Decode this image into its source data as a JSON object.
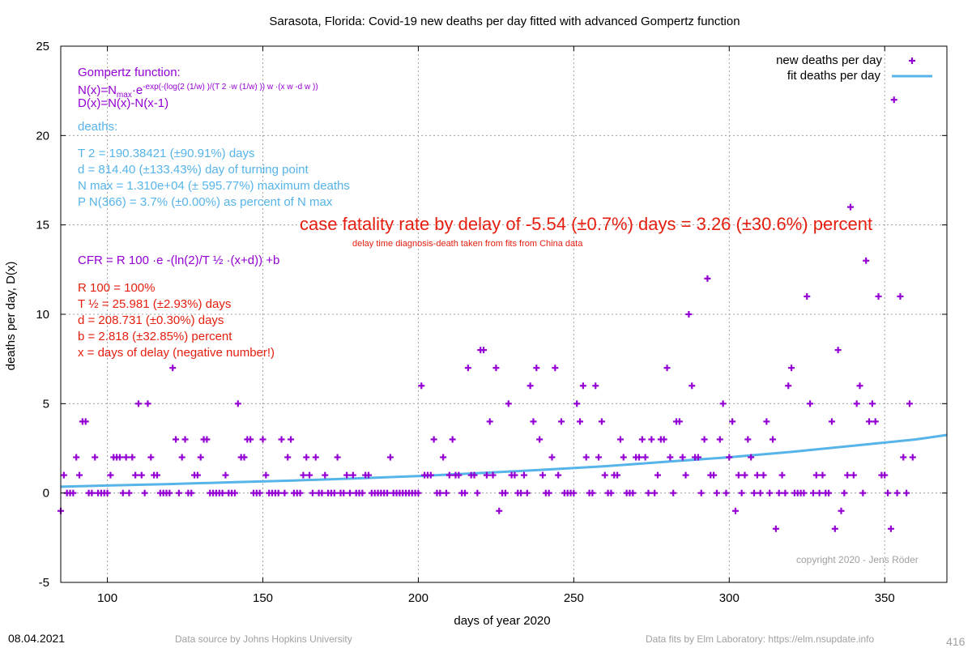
{
  "chart_data": {
    "type": "scatter",
    "title": "Sarasota,  Florida: Covid-19 new deaths per day fitted with advanced Gompertz function",
    "xlabel": "days of year 2020",
    "ylabel": "deaths per day, D(x)",
    "xlim": [
      85,
      370
    ],
    "ylim": [
      -5,
      25
    ],
    "xticks": [
      100,
      150,
      200,
      250,
      300,
      350
    ],
    "yticks": [
      -5,
      0,
      5,
      10,
      15,
      20,
      25
    ],
    "grid": true,
    "legend_position": "top-right",
    "legend": [
      "new deaths per day",
      "fit deaths per day"
    ],
    "series": [
      {
        "name": "new deaths per day",
        "kind": "points",
        "color": "#9400d3",
        "points": [
          [
            85,
            -1
          ],
          [
            86,
            1
          ],
          [
            87,
            0
          ],
          [
            88,
            0
          ],
          [
            89,
            0
          ],
          [
            90,
            2
          ],
          [
            91,
            1
          ],
          [
            92,
            4
          ],
          [
            93,
            4
          ],
          [
            94,
            0
          ],
          [
            95,
            0
          ],
          [
            96,
            2
          ],
          [
            97,
            0
          ],
          [
            98,
            0
          ],
          [
            99,
            0
          ],
          [
            100,
            0
          ],
          [
            101,
            1
          ],
          [
            102,
            2
          ],
          [
            103,
            2
          ],
          [
            104,
            2
          ],
          [
            105,
            0
          ],
          [
            106,
            2
          ],
          [
            107,
            0
          ],
          [
            108,
            2
          ],
          [
            109,
            1
          ],
          [
            110,
            5
          ],
          [
            111,
            1
          ],
          [
            112,
            0
          ],
          [
            113,
            5
          ],
          [
            114,
            2
          ],
          [
            115,
            1
          ],
          [
            116,
            1
          ],
          [
            117,
            0
          ],
          [
            118,
            0
          ],
          [
            119,
            0
          ],
          [
            120,
            0
          ],
          [
            121,
            7
          ],
          [
            122,
            3
          ],
          [
            123,
            0
          ],
          [
            124,
            2
          ],
          [
            125,
            3
          ],
          [
            126,
            0
          ],
          [
            127,
            0
          ],
          [
            128,
            1
          ],
          [
            129,
            1
          ],
          [
            130,
            2
          ],
          [
            131,
            3
          ],
          [
            132,
            3
          ],
          [
            133,
            0
          ],
          [
            134,
            0
          ],
          [
            135,
            0
          ],
          [
            136,
            0
          ],
          [
            137,
            0
          ],
          [
            138,
            1
          ],
          [
            139,
            0
          ],
          [
            140,
            0
          ],
          [
            141,
            0
          ],
          [
            142,
            5
          ],
          [
            143,
            2
          ],
          [
            144,
            2
          ],
          [
            145,
            3
          ],
          [
            146,
            3
          ],
          [
            147,
            0
          ],
          [
            148,
            0
          ],
          [
            149,
            0
          ],
          [
            150,
            3
          ],
          [
            151,
            1
          ],
          [
            152,
            0
          ],
          [
            153,
            0
          ],
          [
            154,
            0
          ],
          [
            155,
            0
          ],
          [
            156,
            3
          ],
          [
            157,
            0
          ],
          [
            158,
            2
          ],
          [
            159,
            3
          ],
          [
            160,
            0
          ],
          [
            161,
            0
          ],
          [
            162,
            0
          ],
          [
            163,
            1
          ],
          [
            164,
            2
          ],
          [
            165,
            1
          ],
          [
            166,
            0
          ],
          [
            167,
            2
          ],
          [
            168,
            0
          ],
          [
            169,
            0
          ],
          [
            170,
            1
          ],
          [
            171,
            0
          ],
          [
            172,
            0
          ],
          [
            173,
            0
          ],
          [
            174,
            2
          ],
          [
            175,
            0
          ],
          [
            176,
            0
          ],
          [
            177,
            1
          ],
          [
            178,
            0
          ],
          [
            179,
            1
          ],
          [
            180,
            0
          ],
          [
            181,
            0
          ],
          [
            182,
            0
          ],
          [
            183,
            1
          ],
          [
            184,
            1
          ],
          [
            185,
            0
          ],
          [
            186,
            0
          ],
          [
            187,
            0
          ],
          [
            188,
            0
          ],
          [
            189,
            0
          ],
          [
            190,
            0
          ],
          [
            191,
            2
          ],
          [
            192,
            0
          ],
          [
            193,
            0
          ],
          [
            194,
            0
          ],
          [
            195,
            0
          ],
          [
            196,
            0
          ],
          [
            197,
            0
          ],
          [
            198,
            0
          ],
          [
            199,
            0
          ],
          [
            200,
            0
          ],
          [
            201,
            6
          ],
          [
            202,
            1
          ],
          [
            203,
            1
          ],
          [
            204,
            1
          ],
          [
            205,
            3
          ],
          [
            206,
            0
          ],
          [
            207,
            0
          ],
          [
            208,
            2
          ],
          [
            209,
            0
          ],
          [
            210,
            1
          ],
          [
            211,
            3
          ],
          [
            212,
            1
          ],
          [
            213,
            1
          ],
          [
            214,
            0
          ],
          [
            215,
            0
          ],
          [
            216,
            7
          ],
          [
            217,
            1
          ],
          [
            218,
            1
          ],
          [
            219,
            0
          ],
          [
            220,
            8
          ],
          [
            221,
            8
          ],
          [
            222,
            1
          ],
          [
            223,
            4
          ],
          [
            224,
            1
          ],
          [
            225,
            7
          ],
          [
            226,
            -1
          ],
          [
            227,
            0
          ],
          [
            228,
            0
          ],
          [
            229,
            5
          ],
          [
            230,
            1
          ],
          [
            231,
            1
          ],
          [
            232,
            0
          ],
          [
            233,
            0
          ],
          [
            234,
            1
          ],
          [
            235,
            0
          ],
          [
            236,
            6
          ],
          [
            237,
            4
          ],
          [
            238,
            7
          ],
          [
            239,
            3
          ],
          [
            240,
            1
          ],
          [
            241,
            0
          ],
          [
            242,
            0
          ],
          [
            243,
            2
          ],
          [
            244,
            7
          ],
          [
            245,
            1
          ],
          [
            246,
            4
          ],
          [
            247,
            0
          ],
          [
            248,
            0
          ],
          [
            249,
            0
          ],
          [
            250,
            0
          ],
          [
            251,
            5
          ],
          [
            252,
            4
          ],
          [
            253,
            6
          ],
          [
            254,
            2
          ],
          [
            255,
            0
          ],
          [
            256,
            0
          ],
          [
            257,
            6
          ],
          [
            258,
            2
          ],
          [
            259,
            4
          ],
          [
            260,
            1
          ],
          [
            261,
            0
          ],
          [
            262,
            0
          ],
          [
            263,
            1
          ],
          [
            264,
            1
          ],
          [
            265,
            3
          ],
          [
            266,
            2
          ],
          [
            267,
            0
          ],
          [
            268,
            0
          ],
          [
            269,
            0
          ],
          [
            270,
            2
          ],
          [
            271,
            2
          ],
          [
            272,
            3
          ],
          [
            273,
            2
          ],
          [
            274,
            0
          ],
          [
            275,
            3
          ],
          [
            276,
            0
          ],
          [
            277,
            1
          ],
          [
            278,
            3
          ],
          [
            279,
            3
          ],
          [
            280,
            7
          ],
          [
            281,
            2
          ],
          [
            282,
            0
          ],
          [
            283,
            4
          ],
          [
            284,
            4
          ],
          [
            285,
            2
          ],
          [
            286,
            1
          ],
          [
            287,
            10
          ],
          [
            288,
            6
          ],
          [
            289,
            2
          ],
          [
            290,
            2
          ],
          [
            291,
            0
          ],
          [
            292,
            3
          ],
          [
            293,
            12
          ],
          [
            294,
            1
          ],
          [
            295,
            1
          ],
          [
            296,
            0
          ],
          [
            297,
            3
          ],
          [
            298,
            5
          ],
          [
            299,
            0
          ],
          [
            300,
            2
          ],
          [
            301,
            4
          ],
          [
            302,
            -1
          ],
          [
            303,
            1
          ],
          [
            304,
            0
          ],
          [
            305,
            1
          ],
          [
            306,
            3
          ],
          [
            307,
            2
          ],
          [
            308,
            0
          ],
          [
            309,
            1
          ],
          [
            310,
            0
          ],
          [
            311,
            1
          ],
          [
            312,
            4
          ],
          [
            313,
            0
          ],
          [
            314,
            3
          ],
          [
            315,
            -2
          ],
          [
            316,
            0
          ],
          [
            317,
            1
          ],
          [
            318,
            0
          ],
          [
            319,
            6
          ],
          [
            320,
            7
          ],
          [
            321,
            0
          ],
          [
            322,
            0
          ],
          [
            323,
            0
          ],
          [
            324,
            0
          ],
          [
            325,
            11
          ],
          [
            326,
            5
          ],
          [
            327,
            0
          ],
          [
            328,
            1
          ],
          [
            329,
            0
          ],
          [
            330,
            1
          ],
          [
            331,
            0
          ],
          [
            332,
            0
          ],
          [
            333,
            4
          ],
          [
            334,
            -2
          ],
          [
            335,
            8
          ],
          [
            336,
            -1
          ],
          [
            337,
            0
          ],
          [
            338,
            1
          ],
          [
            339,
            16
          ],
          [
            340,
            1
          ],
          [
            341,
            5
          ],
          [
            342,
            6
          ],
          [
            343,
            0
          ],
          [
            344,
            13
          ],
          [
            345,
            4
          ],
          [
            346,
            5
          ],
          [
            347,
            4
          ],
          [
            348,
            11
          ],
          [
            349,
            1
          ],
          [
            350,
            1
          ],
          [
            351,
            0
          ],
          [
            352,
            -2
          ],
          [
            353,
            22
          ],
          [
            354,
            0
          ],
          [
            355,
            11
          ],
          [
            356,
            2
          ],
          [
            357,
            0
          ],
          [
            358,
            5
          ],
          [
            359,
            2
          ]
        ]
      },
      {
        "name": "fit deaths per day",
        "kind": "line",
        "color": "#56b4e9",
        "points": [
          [
            85,
            0.35
          ],
          [
            100,
            0.42
          ],
          [
            120,
            0.5
          ],
          [
            140,
            0.6
          ],
          [
            160,
            0.7
          ],
          [
            180,
            0.82
          ],
          [
            200,
            0.95
          ],
          [
            220,
            1.12
          ],
          [
            240,
            1.3
          ],
          [
            260,
            1.5
          ],
          [
            280,
            1.75
          ],
          [
            300,
            2.0
          ],
          [
            320,
            2.3
          ],
          [
            340,
            2.65
          ],
          [
            360,
            3.0
          ],
          [
            370,
            3.25
          ]
        ]
      }
    ]
  },
  "annotations": {
    "gompertz_header": "Gompertz function:",
    "gompertz_formula_1": "N(x)=N",
    "gompertz_formula_1_sub": "max",
    "gompertz_formula_1_rest": "·e",
    "gompertz_formula_1_sup": "-exp(-(log(2 (1/w) )/(T 2 ·w (1/w) )) w ·(x w -d w ))",
    "gompertz_formula_2": "D(x)=N(x)-N(x-1)",
    "deaths_header": "deaths:",
    "t2": "T 2 = 190.38421 (±90.91%) days",
    "d": "d = 814.40 (±133.43%) day of turning point",
    "nmax": "N max = 1.310e+04 (± 595.77%) maximum deaths",
    "pn": "P N(366) = 3.7% (±0.00%) as percent of N max",
    "cfr_big": "case fatality rate by delay of -5.54 (±0.7%) days = 3.26 (±30.6%) percent",
    "cfr_small": "delay time diagnosis-death taken from fits from China data",
    "cfr_formula": "CFR = R 100 ·e -(ln(2)/T ½ ·(x+d)) +b",
    "r100": "R 100 = 100%",
    "thalf": "T ½ = 25.981 (±2.93%) days",
    "d2": "d = 208.731 (±0.30%) days",
    "b": "b = 2.818 (±32.85%) percent",
    "xnote": "x = days of delay (negative number!)",
    "copyright": "copyright 2020 - Jens Röder"
  },
  "footer": {
    "date": "08.04.2021",
    "source": "Data source by Johns Hopkins University",
    "fits": "Data fits by Elm Laboratory: https://elm.nsupdate.info",
    "page_number": "416"
  }
}
